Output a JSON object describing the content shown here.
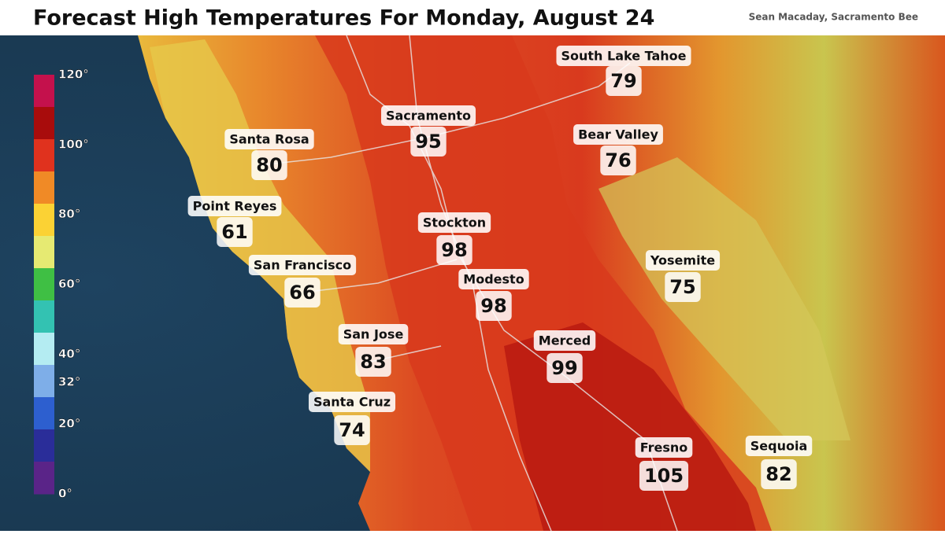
{
  "header": {
    "title": "Forecast High Temperatures For Monday, August 24",
    "credit": "Sean Macaday, Sacramento Bee"
  },
  "legend": {
    "ylim": [
      0,
      120
    ],
    "ticks": [
      {
        "value": 120,
        "label": "120°"
      },
      {
        "value": 100,
        "label": "100°"
      },
      {
        "value": 80,
        "label": "80°"
      },
      {
        "value": 60,
        "label": "60°"
      },
      {
        "value": 40,
        "label": "40°"
      },
      {
        "value": 32,
        "label": "32°"
      },
      {
        "value": 20,
        "label": "20°"
      },
      {
        "value": 0,
        "label": "0°"
      }
    ]
  },
  "cities": [
    {
      "name": "South Lake Tahoe",
      "temp": 79
    },
    {
      "name": "Sacramento",
      "temp": 95
    },
    {
      "name": "Santa Rosa",
      "temp": 80
    },
    {
      "name": "Bear Valley",
      "temp": 76
    },
    {
      "name": "Point Reyes",
      "temp": 61
    },
    {
      "name": "Stockton",
      "temp": 98
    },
    {
      "name": "San Francisco",
      "temp": 66
    },
    {
      "name": "Yosemite",
      "temp": 75
    },
    {
      "name": "Modesto",
      "temp": 98
    },
    {
      "name": "San Jose",
      "temp": 83
    },
    {
      "name": "Merced",
      "temp": 99
    },
    {
      "name": "Santa Cruz",
      "temp": 74
    },
    {
      "name": "Fresno",
      "temp": 105
    },
    {
      "name": "Sequoia",
      "temp": 82
    }
  ]
}
